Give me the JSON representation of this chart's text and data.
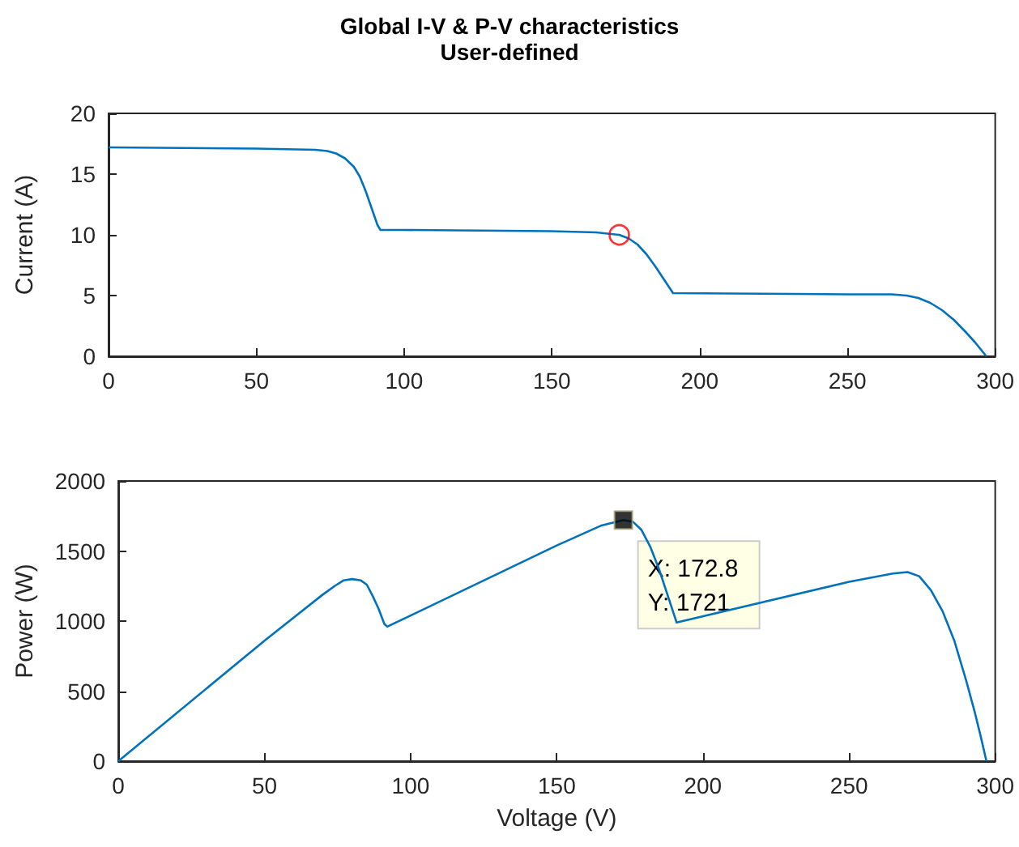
{
  "chart_data": [
    {
      "type": "line",
      "title": "Global I-V & P-V characteristics",
      "subtitle": "User-defined",
      "ylabel": "Current (A)",
      "xlim": [
        0,
        300
      ],
      "xticks": [
        0,
        50,
        100,
        150,
        200,
        250,
        300
      ],
      "ylim": [
        0,
        20
      ],
      "yticks": [
        0,
        5,
        10,
        15,
        20
      ],
      "grid": false,
      "series": [
        {
          "color": "#0072bd",
          "marker": "none",
          "line_style": "solid",
          "x": [
            0,
            50,
            70,
            74,
            77,
            80,
            83,
            85,
            87,
            89,
            91,
            92,
            100,
            150,
            165,
            172.8,
            176,
            179,
            182,
            185,
            188,
            191,
            250,
            265,
            270,
            274,
            278,
            282,
            286,
            290,
            293,
            295,
            297
          ],
          "values": [
            17.2,
            17.1,
            17.0,
            16.9,
            16.7,
            16.3,
            15.6,
            14.8,
            13.6,
            12.2,
            10.8,
            10.4,
            10.4,
            10.3,
            10.2,
            10.0,
            9.7,
            9.2,
            8.4,
            7.4,
            6.3,
            5.2,
            5.1,
            5.1,
            5.0,
            4.8,
            4.4,
            3.8,
            3.0,
            2.0,
            1.2,
            0.6,
            0
          ]
        },
        {
          "type": "scatter",
          "color": "#ff0000",
          "marker": "circle",
          "x": [
            172.8
          ],
          "values": [
            10.0
          ]
        }
      ]
    },
    {
      "type": "line",
      "xlabel": "Voltage (V)",
      "ylabel": "Power (W)",
      "xlim": [
        0,
        300
      ],
      "xticks": [
        0,
        50,
        100,
        150,
        200,
        250,
        300
      ],
      "ylim": [
        0,
        2000
      ],
      "yticks": [
        0,
        500,
        1000,
        1500,
        2000
      ],
      "grid": false,
      "annotations": [
        {
          "text": "X: 172.8\nY: 1721",
          "x": 172.8,
          "y": 1721
        }
      ],
      "series": [
        {
          "color": "#0072bd",
          "marker": "none",
          "line_style": "solid",
          "x": [
            0,
            50,
            70,
            74,
            77,
            80,
            83,
            85,
            87,
            89,
            91,
            92,
            100,
            150,
            165,
            172.8,
            176,
            179,
            182,
            185,
            188,
            191,
            250,
            265,
            270,
            274,
            278,
            282,
            286,
            290,
            293,
            295,
            297
          ],
          "values": [
            0,
            860,
            1190,
            1250,
            1290,
            1300,
            1290,
            1260,
            1180,
            1090,
            980,
            960,
            1040,
            1540,
            1680,
            1721,
            1710,
            1650,
            1530,
            1370,
            1180,
            990,
            1280,
            1340,
            1350,
            1320,
            1220,
            1070,
            860,
            580,
            350,
            180,
            0
          ]
        },
        {
          "type": "scatter",
          "color": "#000000",
          "marker": "square",
          "x": [
            172.8
          ],
          "values": [
            1721
          ]
        }
      ]
    }
  ]
}
